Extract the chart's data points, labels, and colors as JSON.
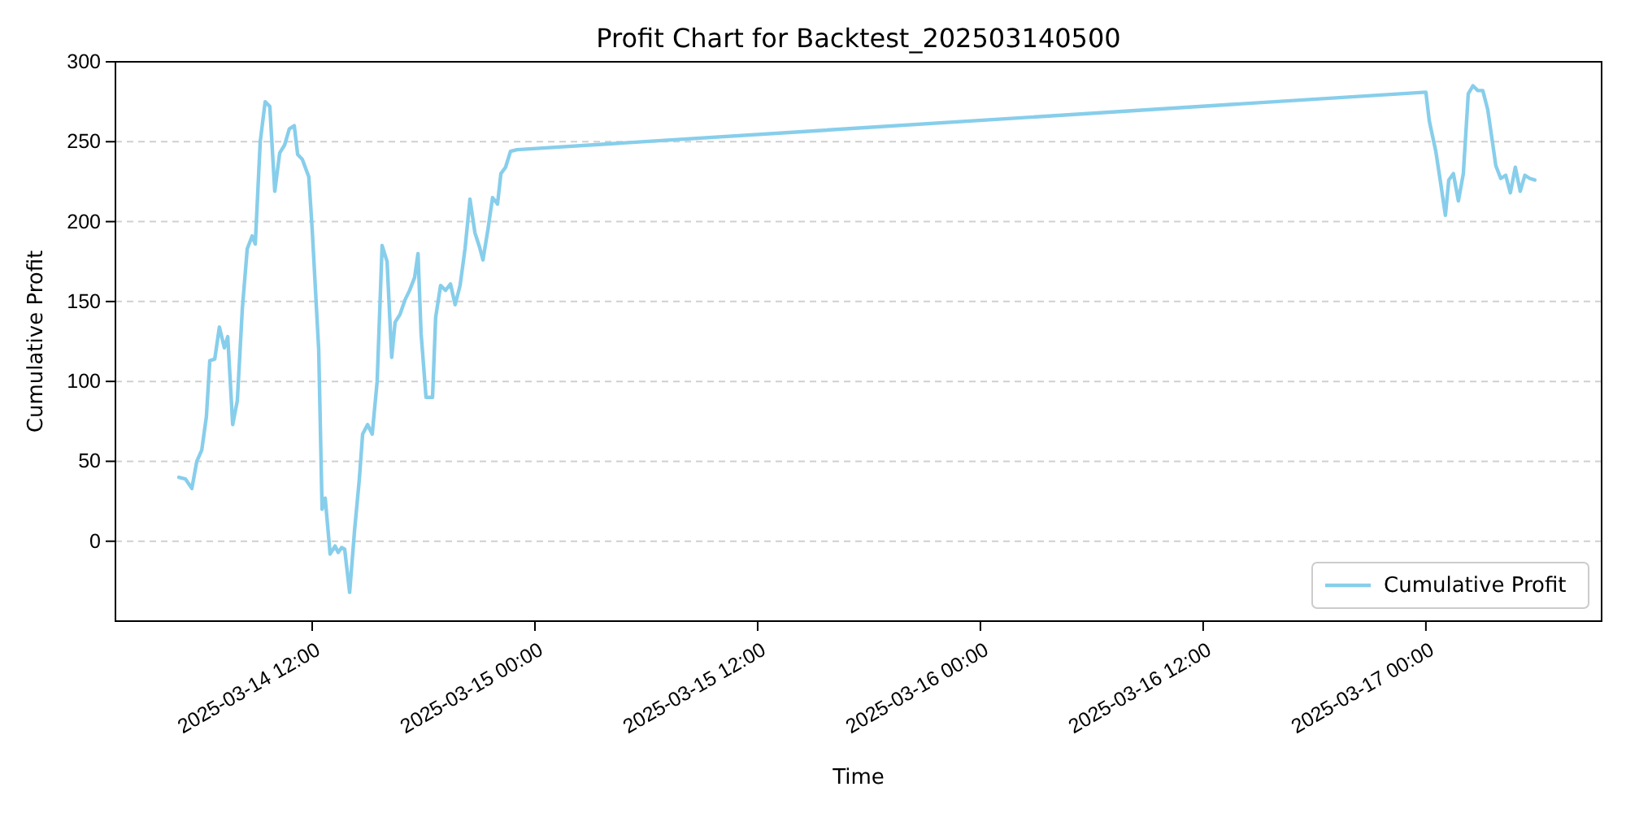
{
  "chart_data": {
    "type": "line",
    "title": "Profit Chart for Backtest_202503140500",
    "xlabel": "Time",
    "ylabel": "Cumulative Profit",
    "xlim": [
      "2025-03-14T01:24",
      "2025-03-17T09:28"
    ],
    "xticks": [
      {
        "value": "2025-03-14T12:00",
        "label": "2025-03-14 12:00"
      },
      {
        "value": "2025-03-15T00:00",
        "label": "2025-03-15 00:00"
      },
      {
        "value": "2025-03-15T12:00",
        "label": "2025-03-15 12:00"
      },
      {
        "value": "2025-03-16T00:00",
        "label": "2025-03-16 00:00"
      },
      {
        "value": "2025-03-16T12:00",
        "label": "2025-03-16 12:00"
      },
      {
        "value": "2025-03-17T00:00",
        "label": "2025-03-17 00:00"
      }
    ],
    "ylim": [
      -50,
      300
    ],
    "yticks": [
      0,
      50,
      100,
      150,
      200,
      250,
      300
    ],
    "grid": "y",
    "legend": "bottom right",
    "line_style": "solid",
    "marker": "none",
    "series": [
      {
        "name": "Cumulative Profit",
        "color": "#87ceeb",
        "x": [
          "2025-03-14T04:49",
          "2025-03-14T05:10",
          "2025-03-14T05:31",
          "2025-03-14T05:47",
          "2025-03-14T06:03",
          "2025-03-14T06:18",
          "2025-03-14T06:29",
          "2025-03-14T06:45",
          "2025-03-14T07:00",
          "2025-03-14T07:16",
          "2025-03-14T07:27",
          "2025-03-14T07:43",
          "2025-03-14T07:58",
          "2025-03-14T08:14",
          "2025-03-14T08:30",
          "2025-03-14T08:46",
          "2025-03-14T08:56",
          "2025-03-14T09:12",
          "2025-03-14T09:28",
          "2025-03-14T09:43",
          "2025-03-14T09:59",
          "2025-03-14T10:15",
          "2025-03-14T10:31",
          "2025-03-14T10:46",
          "2025-03-14T11:02",
          "2025-03-14T11:13",
          "2025-03-14T11:28",
          "2025-03-14T11:49",
          "2025-03-14T12:00",
          "2025-03-14T12:21",
          "2025-03-14T12:32",
          "2025-03-14T12:42",
          "2025-03-14T12:58",
          "2025-03-14T13:14",
          "2025-03-14T13:24",
          "2025-03-14T13:35",
          "2025-03-14T13:45",
          "2025-03-14T14:01",
          "2025-03-14T14:17",
          "2025-03-14T14:32",
          "2025-03-14T14:43",
          "2025-03-14T14:59",
          "2025-03-14T15:14",
          "2025-03-14T15:30",
          "2025-03-14T15:46",
          "2025-03-14T16:02",
          "2025-03-14T16:17",
          "2025-03-14T16:28",
          "2025-03-14T16:44",
          "2025-03-14T17:00",
          "2025-03-14T17:15",
          "2025-03-14T17:31",
          "2025-03-14T17:42",
          "2025-03-14T17:52",
          "2025-03-14T18:08",
          "2025-03-14T18:29",
          "2025-03-14T18:39",
          "2025-03-14T18:55",
          "2025-03-14T19:11",
          "2025-03-14T19:27",
          "2025-03-14T19:42",
          "2025-03-14T19:58",
          "2025-03-14T20:14",
          "2025-03-14T20:30",
          "2025-03-14T20:46",
          "2025-03-14T21:01",
          "2025-03-14T21:12",
          "2025-03-14T21:28",
          "2025-03-14T21:43",
          "2025-03-14T21:59",
          "2025-03-14T22:10",
          "2025-03-14T22:25",
          "2025-03-14T22:41",
          "2025-03-14T23:02",
          "2025-03-17T00:00",
          "2025-03-17T00:11",
          "2025-03-17T00:32",
          "2025-03-17T00:47",
          "2025-03-17T01:03",
          "2025-03-17T01:14",
          "2025-03-17T01:29",
          "2025-03-17T01:45",
          "2025-03-17T02:01",
          "2025-03-17T02:17",
          "2025-03-17T02:32",
          "2025-03-17T02:48",
          "2025-03-17T03:04",
          "2025-03-17T03:20",
          "2025-03-17T03:35",
          "2025-03-17T03:46",
          "2025-03-17T04:02",
          "2025-03-17T04:18",
          "2025-03-17T04:33",
          "2025-03-17T04:49",
          "2025-03-17T05:05",
          "2025-03-17T05:20",
          "2025-03-17T05:36",
          "2025-03-17T05:52"
        ],
        "values": [
          40,
          39,
          33,
          50,
          57,
          78,
          113,
          114,
          134,
          121,
          128,
          73,
          88,
          145,
          183,
          191,
          186,
          250,
          275,
          272,
          219,
          243,
          248,
          258,
          260,
          242,
          239,
          228,
          195,
          120,
          20,
          27,
          -8,
          -3,
          -7,
          -4,
          -5,
          -32,
          7,
          38,
          67,
          73,
          67,
          100,
          185,
          175,
          115,
          137,
          142,
          151,
          157,
          165,
          180,
          130,
          90,
          90,
          140,
          160,
          157,
          161,
          148,
          160,
          183,
          214,
          193,
          184,
          176,
          195,
          215,
          211,
          230,
          234,
          244,
          245,
          281,
          263,
          244,
          225,
          204,
          226,
          230,
          213,
          230,
          280,
          285,
          282,
          282,
          270,
          250,
          235,
          227,
          229,
          218,
          234,
          219,
          229,
          227,
          226
        ]
      }
    ]
  }
}
